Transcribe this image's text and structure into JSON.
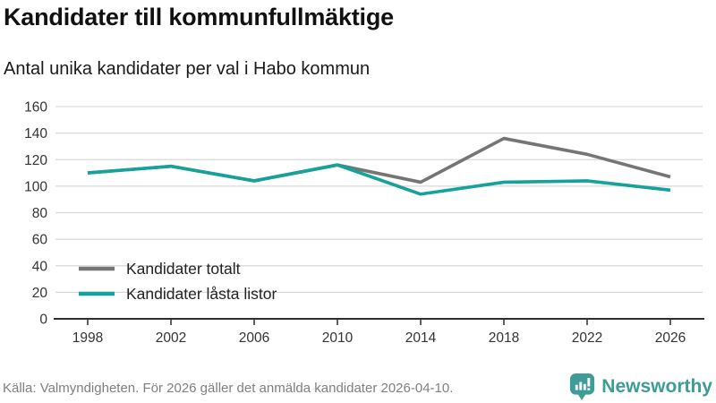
{
  "header": {
    "title": "Kandidater till kommunfullmäktige",
    "subtitle": "Antal unika kandidater per val i Habo kommun"
  },
  "chart_data": {
    "type": "line",
    "title": "Kandidater till kommunfullmäktige",
    "subtitle": "Antal unika kandidater per val i Habo kommun",
    "x": [
      1998,
      2002,
      2006,
      2010,
      2014,
      2018,
      2022,
      2026
    ],
    "series": [
      {
        "name": "Kandidater totalt",
        "color": "#757575",
        "values": [
          110,
          115,
          104,
          116,
          103,
          136,
          124,
          107
        ]
      },
      {
        "name": "Kandidater låsta listor",
        "color": "#14a29a",
        "values": [
          110,
          115,
          104,
          116,
          94,
          103,
          104,
          97
        ]
      }
    ],
    "xlabel": "",
    "ylabel": "",
    "ylim": [
      0,
      160
    ],
    "ytick_step": 20,
    "grid": true,
    "legend_position": "inside-bottom-left"
  },
  "footer": {
    "source": "Källa: Valmyndigheten. För 2026 gäller det anmälda kandidater 2026-04-10.",
    "brand": "Newsworthy"
  },
  "icons": {
    "brand_icon": "newsworthy-speech-bubble-bar-chart-icon"
  },
  "colors": {
    "accent_teal": "#14a29a",
    "gray_line": "#757575",
    "brand_teal": "#3d9c95",
    "grid": "#d9d9d9",
    "axis": "#2f2f2f",
    "axis_text": "#333333",
    "legend_text": "#222222"
  }
}
